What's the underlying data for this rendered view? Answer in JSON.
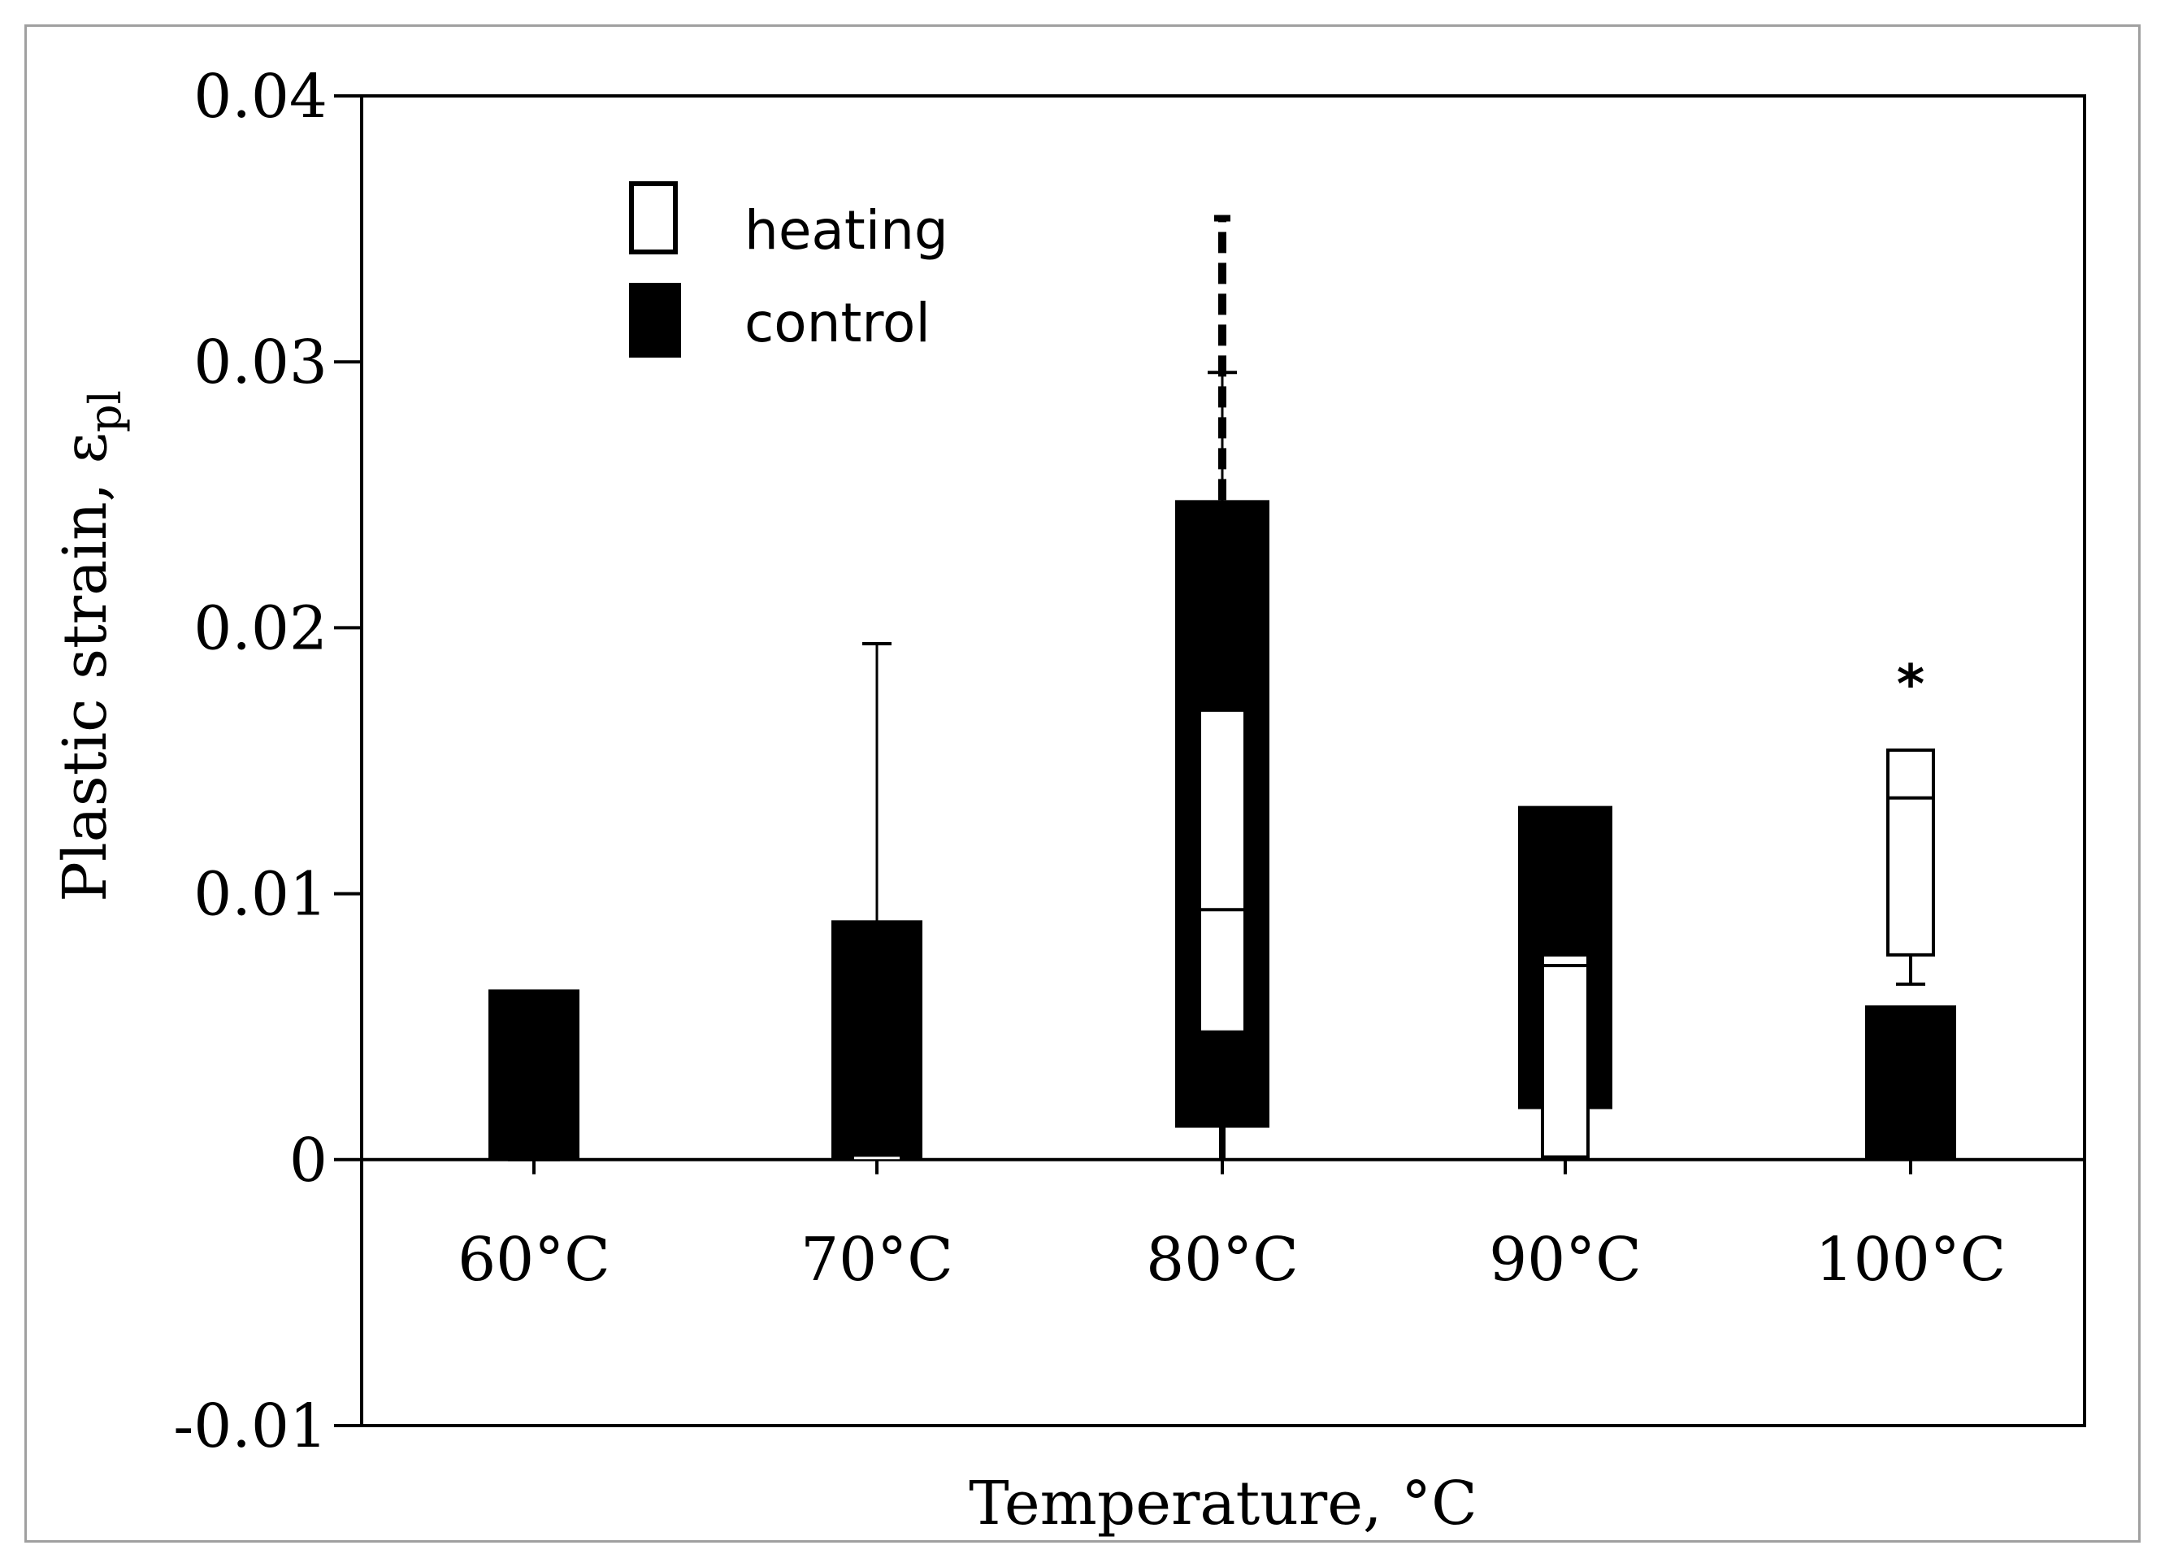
{
  "chart_data": {
    "type": "box",
    "title": "",
    "xlabel": "Temperature, °C",
    "ylabel_main": "Plastic strain, ε",
    "ylabel_sub": "pl",
    "ylim": [
      -0.01,
      0.04
    ],
    "yticks": [
      {
        "value": 0.04,
        "label": "0.04"
      },
      {
        "value": 0.03,
        "label": "0.03"
      },
      {
        "value": 0.02,
        "label": "0.02"
      },
      {
        "value": 0.01,
        "label": "0.01"
      },
      {
        "value": 0,
        "label": "0"
      },
      {
        "value": -0.01,
        "label": "-0.01"
      }
    ],
    "categories": [
      "60°C",
      "70°C",
      "80°C",
      "90°C",
      "100°C"
    ],
    "legend": {
      "position": "top-left",
      "heating": "heating",
      "control": "control"
    },
    "series": [
      {
        "name": "control",
        "fill": "#000000",
        "whisker_style": "dashed",
        "boxes": [
          {
            "category": "60°C",
            "q1": 0.0,
            "median": 0.0002,
            "q3": 0.0064,
            "min": 0.0,
            "max": 0.0064
          },
          {
            "category": "70°C",
            "q1": 0.0,
            "median": 0.0,
            "q3": 0.009,
            "min": 0.0,
            "max": 0.009
          },
          {
            "category": "80°C",
            "q1": 0.0012,
            "median": 0.0094,
            "q3": 0.0248,
            "min": 0.0,
            "max": 0.0354
          },
          {
            "category": "90°C",
            "q1": 0.0019,
            "median": 0.0072,
            "q3": 0.0133,
            "min": 0.0,
            "max": 0.0133
          },
          {
            "category": "100°C",
            "q1": 0.0,
            "median": 0.0,
            "q3": 0.0058,
            "min": 0.0,
            "max": 0.0058
          }
        ]
      },
      {
        "name": "heating",
        "fill": "#ffffff",
        "whisker_style": "solid",
        "boxes": [
          {
            "category": "60°C",
            "q1": 0.0,
            "median": 0.0001,
            "q3": 0.0002,
            "min": 0.0,
            "max": 0.0002
          },
          {
            "category": "70°C",
            "q1": 0.0,
            "median": 0.0,
            "q3": 0.0,
            "min": 0.0,
            "max": 0.0194
          },
          {
            "category": "80°C",
            "q1": 0.0048,
            "median": 0.0094,
            "q3": 0.0169,
            "min": 0.0048,
            "max": 0.0296
          },
          {
            "category": "90°C",
            "q1": 0.0001,
            "median": 0.0073,
            "q3": 0.0077,
            "min": 0.0001,
            "max": 0.0077
          },
          {
            "category": "100°C",
            "q1": 0.0077,
            "median": 0.0136,
            "q3": 0.0154,
            "min": 0.0066,
            "max": 0.0154
          }
        ]
      }
    ],
    "annotations": [
      {
        "category": "100°C",
        "value": 0.0178,
        "text": "*"
      }
    ]
  }
}
